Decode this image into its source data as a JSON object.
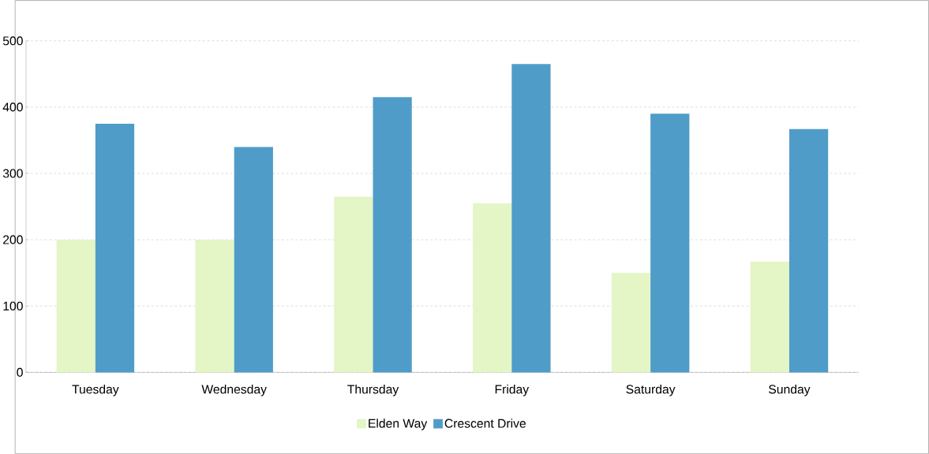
{
  "chart_data": {
    "type": "bar",
    "categories": [
      "Tuesday",
      "Wednesday",
      "Thursday",
      "Friday",
      "Saturday",
      "Sunday"
    ],
    "series": [
      {
        "name": "Elden Way",
        "color": "#e4f5c6",
        "values": [
          200,
          200,
          265,
          255,
          150,
          167
        ]
      },
      {
        "name": "Crescent Drive",
        "color": "#4f9cc8",
        "values": [
          375,
          340,
          415,
          465,
          390,
          367
        ]
      }
    ],
    "ylim": [
      0,
      500
    ],
    "yticks": [
      0,
      100,
      200,
      300,
      400,
      500
    ],
    "grid": "y",
    "legend": "bottom"
  }
}
